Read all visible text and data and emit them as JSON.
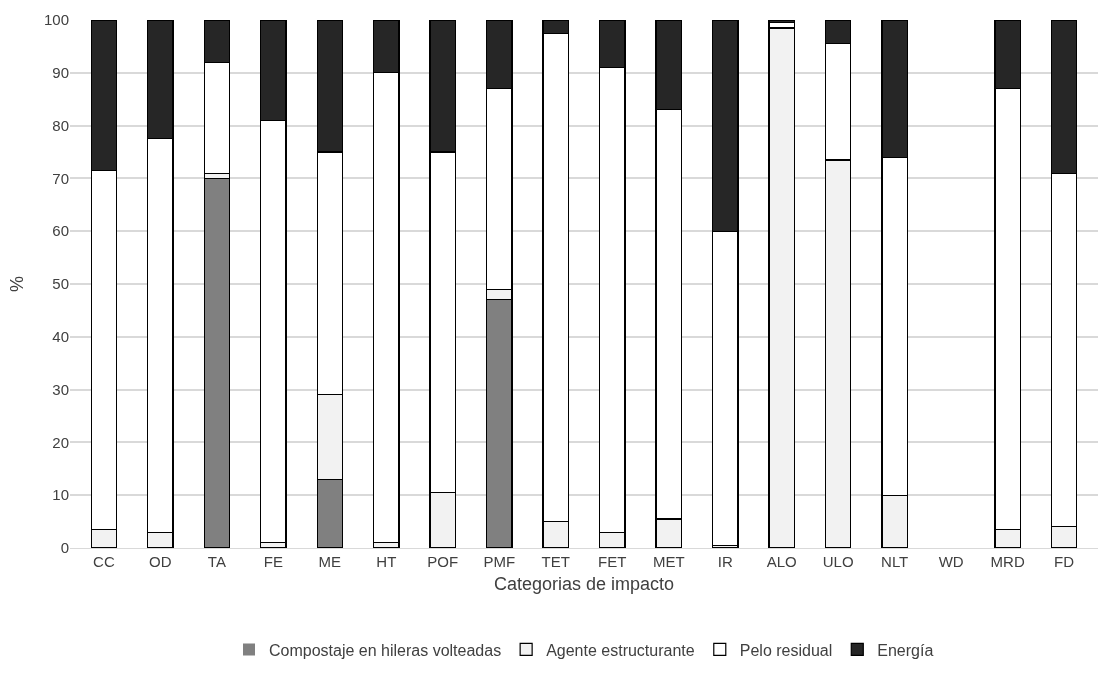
{
  "chart_data": {
    "type": "bar",
    "stacked": true,
    "xlabel": "Categorias de impacto",
    "ylabel": "%",
    "categories": [
      "CC",
      "OD",
      "TA",
      "FE",
      "ME",
      "HT",
      "POF",
      "PMF",
      "TET",
      "FET",
      "MET",
      "IR",
      "ALO",
      "ULO",
      "NLT",
      "WD",
      "MRD",
      "FD"
    ],
    "series": [
      {
        "name": "Compostaje en hileras volteadas",
        "color": "#808080",
        "values": [
          0,
          0,
          70,
          0,
          13,
          0,
          0,
          47,
          0,
          0,
          0,
          0,
          0,
          0,
          0,
          0,
          0,
          0
        ]
      },
      {
        "name": "Agente estructurante",
        "color": "#f2f2f2",
        "values": [
          3.5,
          3,
          1,
          1,
          16,
          1,
          10.5,
          2,
          5,
          3,
          5.5,
          0.5,
          98.5,
          73.5,
          10,
          0,
          3.5,
          4
        ]
      },
      {
        "name": "Pelo residual",
        "color": "#ffffff",
        "values": [
          68,
          74.5,
          21,
          80,
          46,
          89,
          64.5,
          38,
          92.5,
          88,
          77.5,
          59.5,
          1,
          22,
          64,
          0,
          83.5,
          67
        ]
      },
      {
        "name": "Energía",
        "color": "#262626",
        "values": [
          28.5,
          22.5,
          8,
          19,
          25,
          10,
          25,
          13,
          2.5,
          9,
          17,
          40,
          0.5,
          4.5,
          26,
          0,
          13,
          29
        ]
      }
    ],
    "ylim": [
      0,
      100
    ],
    "yticks": [
      0,
      10,
      20,
      30,
      40,
      50,
      60,
      70,
      80,
      90,
      100
    ],
    "grid": "y",
    "legend": "bottom"
  }
}
